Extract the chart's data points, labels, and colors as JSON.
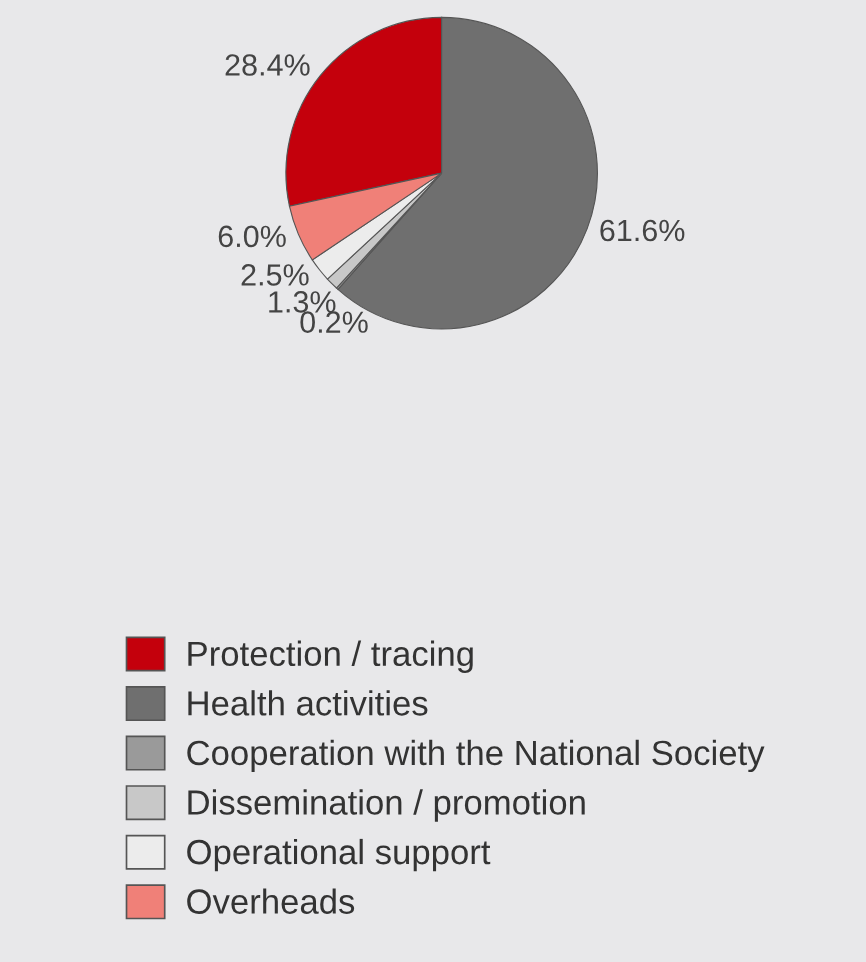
{
  "chart_data": {
    "type": "pie",
    "categories": [
      "Protection / tracing",
      "Health activities",
      "Cooperation with the National Society",
      "Dissemination / promotion",
      "Operational support",
      "Overheads"
    ],
    "values": [
      28.4,
      61.6,
      0.2,
      1.3,
      2.5,
      6.0
    ],
    "value_labels": [
      "28.4%",
      "61.6%",
      "0.2%",
      "1.3%",
      "2.5%",
      "6.0%"
    ],
    "colors": [
      "#c4000c",
      "#6f6f6f",
      "#9a9a9a",
      "#c8c8c8",
      "#ececec",
      "#f08078"
    ],
    "legend": "bottom"
  }
}
